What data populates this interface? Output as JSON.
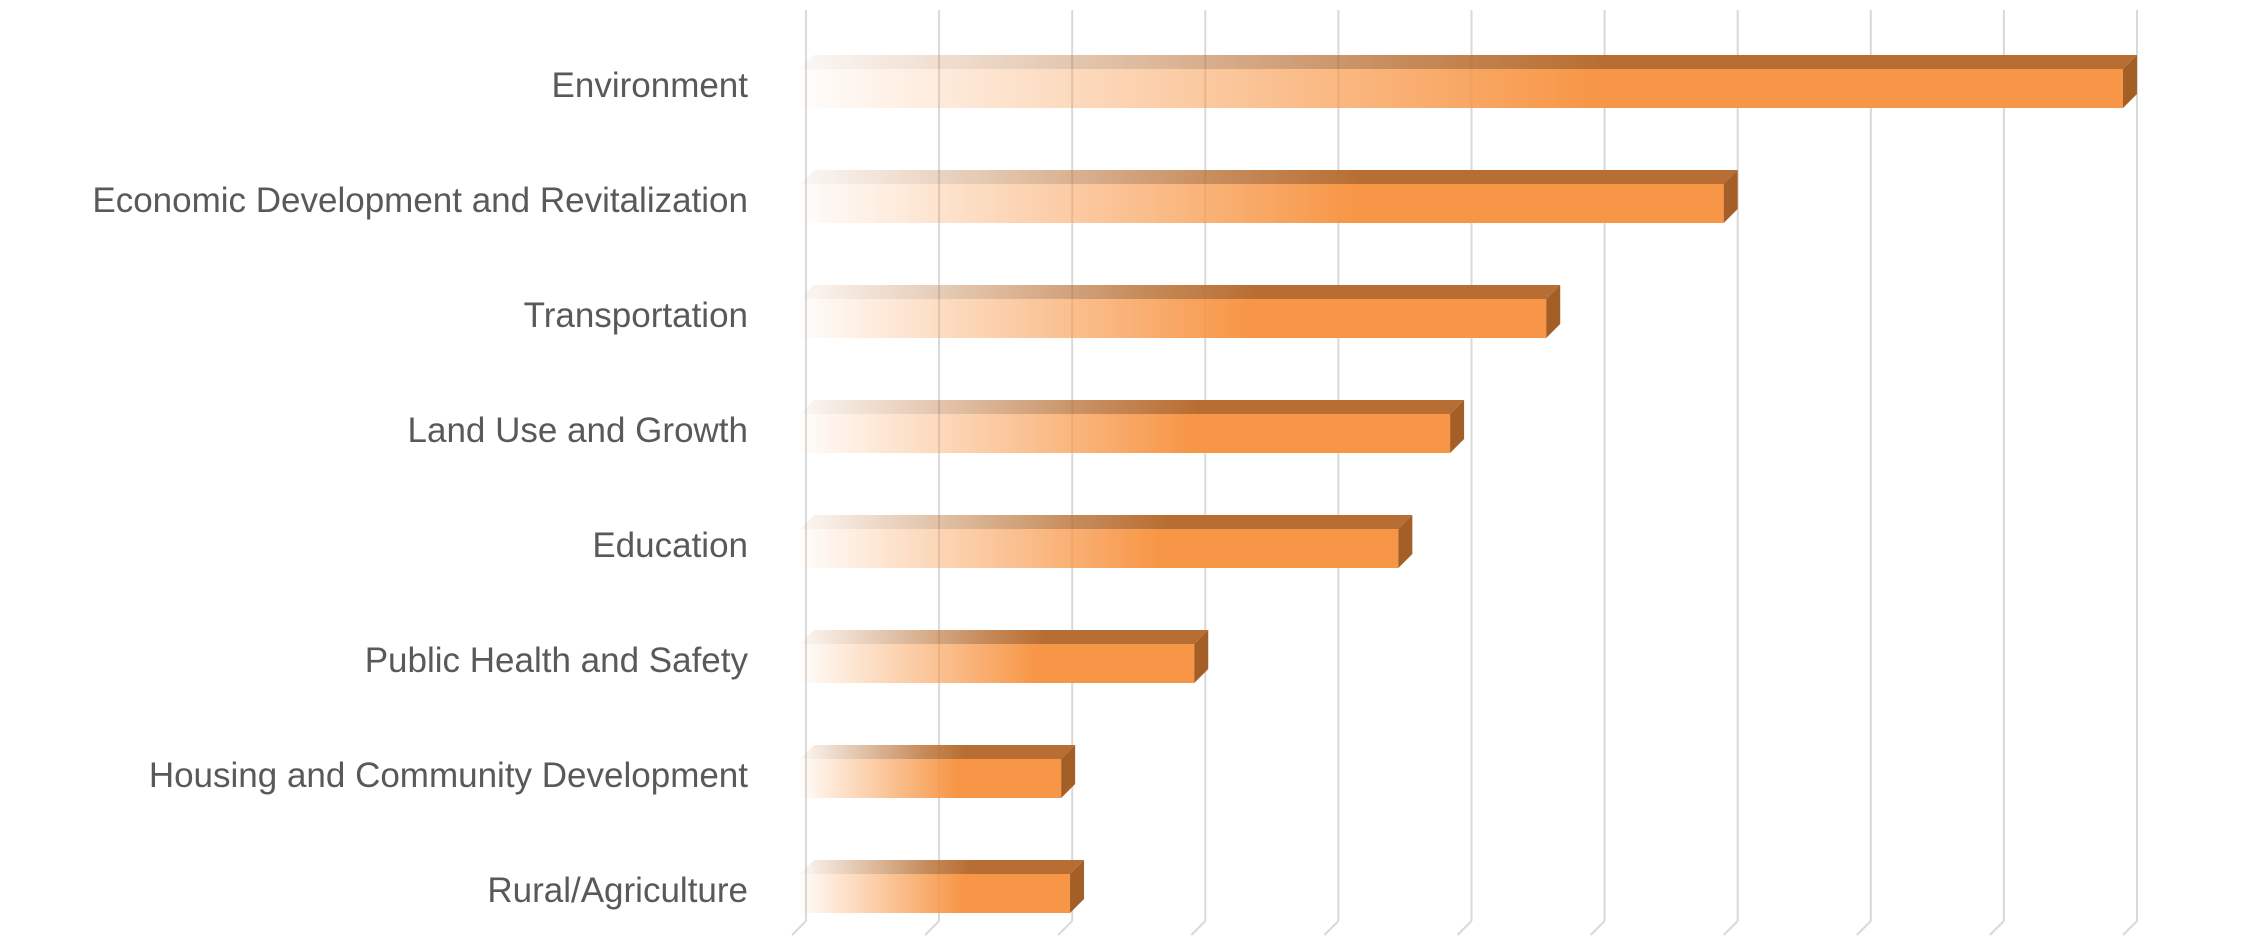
{
  "chart_data": {
    "type": "bar",
    "orientation": "horizontal",
    "title": "",
    "xlabel": "",
    "ylabel": "",
    "categories": [
      "Environment",
      "Economic Development and Revitalization",
      "Transportation",
      "Land Use and Growth",
      "Education",
      "Public Health and Safety",
      "Housing and Community Development",
      "Rural/Agriculture"
    ],
    "values": [
      9,
      6.3,
      5.1,
      4.45,
      4.1,
      2.72,
      1.82,
      1.88
    ],
    "xlim": [
      0,
      9
    ],
    "grid": true,
    "tick_labels_shown": false,
    "legend": "none",
    "bar_style": "3d-gradient",
    "colors": {
      "bar_front": "#F79646",
      "bar_top": "#B86E32",
      "bar_side": "#A45F27",
      "gridline": "#D9D9D9",
      "label": "#595959"
    }
  }
}
